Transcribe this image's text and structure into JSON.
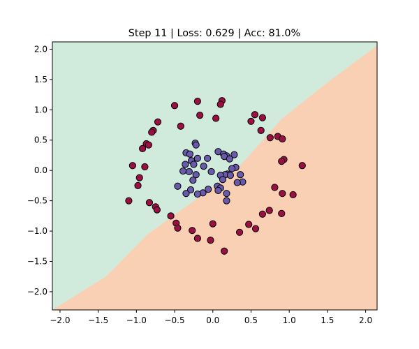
{
  "chart_data": {
    "type": "scatter",
    "title": "Step 11 | Loss: 0.629 | Acc: 81.0%",
    "xlabel": "",
    "ylabel": "",
    "xlim": [
      -2.1,
      2.15
    ],
    "ylim": [
      -2.3,
      2.12
    ],
    "x_ticks": [
      -2.0,
      -1.5,
      -1.0,
      -0.5,
      0.0,
      0.5,
      1.0,
      1.5,
      2.0
    ],
    "x_tick_labels": [
      "−2.0",
      "−1.5",
      "−1.0",
      "−0.5",
      "0.0",
      "0.5",
      "1.0",
      "1.5",
      "2.0"
    ],
    "y_ticks": [
      2.0,
      1.5,
      1.0,
      0.5,
      0.0,
      -0.5,
      -1.0,
      -1.5,
      -2.0
    ],
    "y_tick_labels": [
      "2.0",
      "1.5",
      "1.0",
      "0.5",
      "0.0",
      "−0.5",
      "−1.0",
      "−1.5",
      "−2.0"
    ],
    "grid": false,
    "decision_boundary": {
      "points": [
        [
          -2.1,
          -2.3
        ],
        [
          -1.4,
          -1.75
        ],
        [
          -0.85,
          -1.05
        ],
        [
          -0.3,
          -0.55
        ],
        [
          0.3,
          0.0
        ],
        [
          0.9,
          0.85
        ],
        [
          1.5,
          1.45
        ],
        [
          2.15,
          2.06
        ]
      ],
      "upper_region_color": "#d0ebdc",
      "lower_region_color": "#f9d0b4"
    },
    "series": [
      {
        "color": "#9b0f43",
        "points": [
          [
            0.12,
            1.15
          ],
          [
            -0.2,
            1.14
          ],
          [
            0.1,
            1.09
          ],
          [
            -0.5,
            1.07
          ],
          [
            0.55,
            0.92
          ],
          [
            -0.17,
            0.91
          ],
          [
            0.65,
            0.87
          ],
          [
            0.04,
            0.86
          ],
          [
            0.5,
            0.81
          ],
          [
            -0.72,
            0.8
          ],
          [
            -0.42,
            0.73
          ],
          [
            0.63,
            0.66
          ],
          [
            -0.78,
            0.66
          ],
          [
            -0.8,
            0.63
          ],
          [
            0.85,
            0.56
          ],
          [
            0.75,
            0.54
          ],
          [
            0.91,
            0.52
          ],
          [
            -0.87,
            0.44
          ],
          [
            -0.84,
            0.42
          ],
          [
            -0.92,
            0.36
          ],
          [
            0.93,
            0.18
          ],
          [
            0.9,
            0.15
          ],
          [
            -1.05,
            0.08
          ],
          [
            -0.89,
            0.06
          ],
          [
            1.17,
            0.08
          ],
          [
            -0.96,
            -0.12
          ],
          [
            -0.98,
            -0.25
          ],
          [
            0.81,
            -0.28
          ],
          [
            0.91,
            -0.38
          ],
          [
            1.05,
            -0.4
          ],
          [
            -1.1,
            -0.5
          ],
          [
            -0.83,
            -0.53
          ],
          [
            -0.75,
            -0.6
          ],
          [
            -0.73,
            -0.65
          ],
          [
            0.74,
            -0.66
          ],
          [
            0.9,
            -0.71
          ],
          [
            0.65,
            -0.72
          ],
          [
            -0.55,
            -0.75
          ],
          [
            -0.48,
            -0.87
          ],
          [
            0.47,
            -0.89
          ],
          [
            -0.46,
            -0.95
          ],
          [
            0.56,
            -0.96
          ],
          [
            -0.27,
            -0.99
          ],
          [
            0.35,
            -1.02
          ],
          [
            0.0,
            -0.88
          ],
          [
            -0.2,
            -1.12
          ],
          [
            -0.03,
            -1.15
          ],
          [
            0.15,
            -1.33
          ]
        ]
      },
      {
        "color": "#6a5aab",
        "points": [
          [
            -0.23,
            0.45
          ],
          [
            -0.22,
            0.42
          ],
          [
            0.07,
            0.31
          ],
          [
            -0.35,
            0.29
          ],
          [
            -0.3,
            0.27
          ],
          [
            0.14,
            0.27
          ],
          [
            0.28,
            0.26
          ],
          [
            0.18,
            0.24
          ],
          [
            0.15,
            0.23
          ],
          [
            -0.2,
            0.2
          ],
          [
            -0.07,
            0.2
          ],
          [
            0.22,
            0.19
          ],
          [
            -0.28,
            0.16
          ],
          [
            -0.36,
            0.1
          ],
          [
            -0.25,
            0.1
          ],
          [
            -0.12,
            0.07
          ],
          [
            0.3,
            0.05
          ],
          [
            0.25,
            0.03
          ],
          [
            -0.39,
            -0.01
          ],
          [
            -0.31,
            -0.02
          ],
          [
            -0.02,
            -0.02
          ],
          [
            0.36,
            -0.07
          ],
          [
            0.19,
            -0.06
          ],
          [
            0.16,
            -0.07
          ],
          [
            -0.22,
            -0.07
          ],
          [
            0.1,
            -0.08
          ],
          [
            0.23,
            -0.08
          ],
          [
            0.13,
            -0.15
          ],
          [
            -0.26,
            -0.16
          ],
          [
            0.39,
            -0.19
          ],
          [
            0.32,
            -0.2
          ],
          [
            0.06,
            -0.26
          ],
          [
            -0.46,
            -0.26
          ],
          [
            0.1,
            -0.29
          ],
          [
            -0.06,
            -0.31
          ],
          [
            -0.29,
            -0.32
          ],
          [
            0.07,
            -0.33
          ],
          [
            -0.13,
            -0.37
          ],
          [
            -0.35,
            -0.38
          ],
          [
            -0.2,
            -0.39
          ],
          [
            0.18,
            -0.38
          ],
          [
            0.18,
            -0.5
          ]
        ]
      }
    ]
  }
}
